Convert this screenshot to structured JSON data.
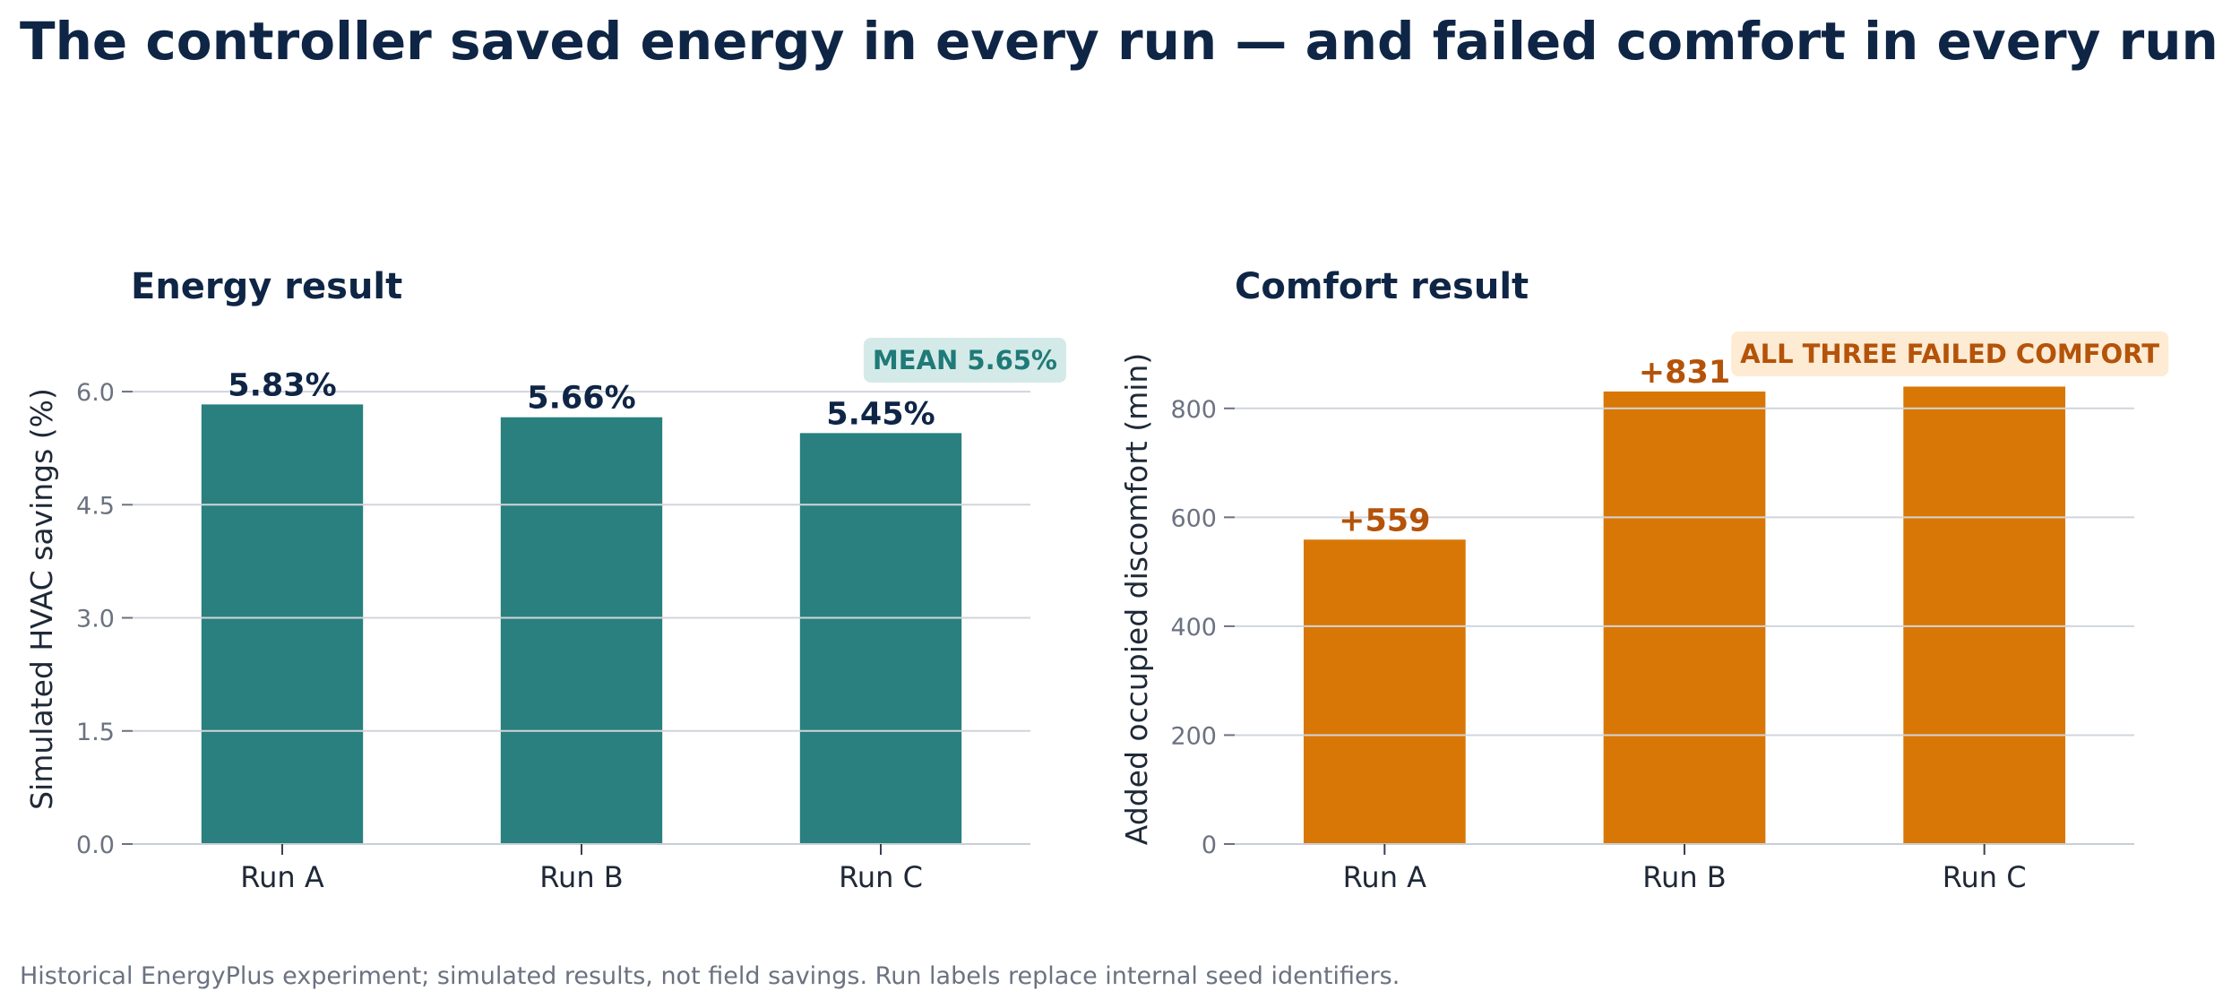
{
  "title": "The controller saved energy in every run — and failed comfort in every run",
  "footnote": "Historical EnergyPlus experiment; simulated results, not field savings. Run labels replace internal seed identifiers.",
  "colors": {
    "energy_bar": "#2a7f7f",
    "comfort_bar": "#d97706",
    "title_text": "#0f2545",
    "comfort_label": "#b45309",
    "energy_callout_bg": "#d4eae8",
    "energy_callout_text": "#1f7a78",
    "comfort_callout_bg": "#fdebd3",
    "comfort_callout_text": "#b45309",
    "grid": "#d1d5db",
    "axis": "#c9ced6"
  },
  "chart_data": [
    {
      "type": "bar",
      "title": "Energy result",
      "xlabel": "",
      "ylabel": "Simulated HVAC savings (%)",
      "categories": [
        "Run A",
        "Run B",
        "Run C"
      ],
      "values": [
        5.83,
        5.66,
        5.45
      ],
      "data_labels": [
        "5.83%",
        "5.66%",
        "5.45%"
      ],
      "ylim": [
        0,
        6.5
      ],
      "yticks": [
        0,
        1.5,
        3.0,
        4.5,
        6.0
      ],
      "ytick_labels": [
        "0.0",
        "1.5",
        "3.0",
        "4.5",
        "6.0"
      ],
      "grid": true,
      "callout": "MEAN 5.65%",
      "callout_placement": "top-right"
    },
    {
      "type": "bar",
      "title": "Comfort result",
      "xlabel": "",
      "ylabel": "Added occupied discomfort (min)",
      "categories": [
        "Run A",
        "Run B",
        "Run C"
      ],
      "values": [
        559,
        831,
        840
      ],
      "data_labels": [
        "+559",
        "+831",
        ""
      ],
      "ylim": [
        0,
        900
      ],
      "yticks": [
        0,
        200,
        400,
        600,
        800
      ],
      "ytick_labels": [
        "0",
        "200",
        "400",
        "600",
        "800"
      ],
      "grid": true,
      "callout": "ALL THREE FAILED COMFORT",
      "callout_placement": "top-right"
    }
  ]
}
